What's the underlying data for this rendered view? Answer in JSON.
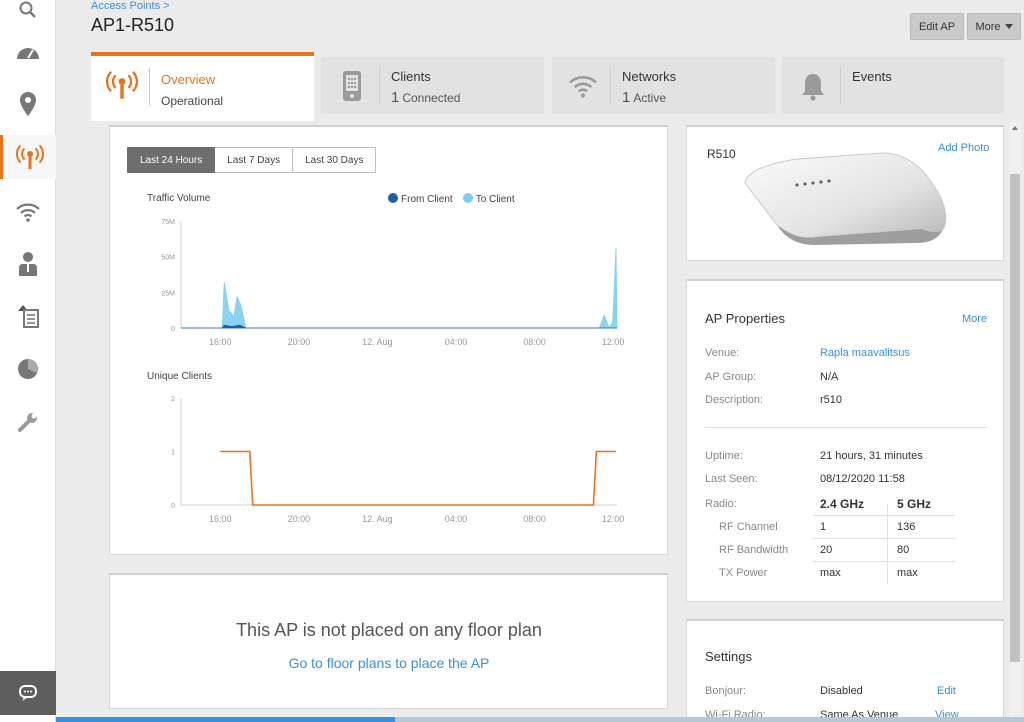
{
  "breadcrumb": "Access Points >",
  "title": "AP1-R510",
  "header_buttons": {
    "edit": "Edit AP",
    "more": "More"
  },
  "sidebar": {
    "items": [
      {
        "icon": "search-icon"
      },
      {
        "icon": "dashboard-icon"
      },
      {
        "icon": "location-pin-icon"
      },
      {
        "icon": "access-point-icon",
        "active": true
      },
      {
        "icon": "wifi-icon"
      },
      {
        "icon": "user-icon"
      },
      {
        "icon": "report-icon"
      },
      {
        "icon": "pie-chart-icon"
      },
      {
        "icon": "wrench-icon"
      }
    ],
    "chat_icon": "chat-icon"
  },
  "tabs": [
    {
      "label": "Overview",
      "sub": "Operational",
      "icon": "access-point-icon"
    },
    {
      "label": "Clients",
      "count": "1",
      "sub": "Connected",
      "icon": "device-icon"
    },
    {
      "label": "Networks",
      "count": "1",
      "sub": "Active",
      "icon": "wifi-icon"
    },
    {
      "label": "Events",
      "icon": "bell-icon"
    }
  ],
  "time_ranges": [
    "Last 24 Hours",
    "Last 7 Days",
    "Last 30 Days"
  ],
  "colors": {
    "accent": "#e8731b",
    "from_client": "#1f5ea8",
    "to_client": "#7ecfee",
    "link": "#3a8fd9"
  },
  "chart_data": [
    {
      "type": "area",
      "title": "Traffic Volume",
      "legend": [
        "From Client",
        "To Client"
      ],
      "y_ticks": [
        "75M",
        "50M",
        "25M",
        "0"
      ],
      "ylim": [
        0,
        75
      ],
      "x_ticks": [
        "16:00",
        "20:00",
        "12. Aug",
        "04:00",
        "08:00",
        "12:00"
      ],
      "series": [
        {
          "name": "To Client",
          "points": [
            [
              0.0,
              0
            ],
            [
              2.1,
              0
            ],
            [
              2.2,
              32
            ],
            [
              2.45,
              12
            ],
            [
              2.7,
              8
            ],
            [
              2.85,
              22
            ],
            [
              3.05,
              16
            ],
            [
              3.3,
              0
            ],
            [
              21.3,
              0
            ],
            [
              21.55,
              9
            ],
            [
              21.8,
              0
            ],
            [
              21.98,
              4
            ],
            [
              22.15,
              56
            ],
            [
              22.2,
              0
            ]
          ]
        },
        {
          "name": "From Client",
          "points": [
            [
              0.0,
              0
            ],
            [
              2.1,
              0
            ],
            [
              2.2,
              2
            ],
            [
              2.6,
              1
            ],
            [
              3.0,
              2
            ],
            [
              3.3,
              0
            ],
            [
              22.2,
              0
            ]
          ]
        }
      ]
    },
    {
      "type": "line",
      "title": "Unique Clients",
      "y_ticks": [
        "2",
        "1",
        "0"
      ],
      "ylim": [
        0,
        2
      ],
      "x_ticks": [
        "16:00",
        "20:00",
        "12. Aug",
        "04:00",
        "08:00",
        "12:00"
      ],
      "series": [
        {
          "name": "Clients",
          "points": [
            [
              2.0,
              1
            ],
            [
              3.5,
              1
            ],
            [
              3.65,
              0
            ],
            [
              21.0,
              0
            ],
            [
              21.15,
              1
            ],
            [
              22.15,
              1
            ]
          ]
        }
      ]
    }
  ],
  "floor_plan": {
    "message": "This AP is not placed on any floor plan",
    "link": "Go to floor plans to place the AP"
  },
  "photo_panel": {
    "model": "R510",
    "add_photo": "Add Photo"
  },
  "properties": {
    "title": "AP Properties",
    "more": "More",
    "venue_label": "Venue:",
    "venue": "Rapla maavalitsus",
    "group_label": "AP Group:",
    "group": "N/A",
    "desc_label": "Description:",
    "desc": "r510",
    "uptime_label": "Uptime:",
    "uptime": "21 hours, 31 minutes",
    "last_seen_label": "Last Seen:",
    "last_seen": "08/12/2020 11:58",
    "radio_label": "Radio:",
    "radio_24": "2.4 GHz",
    "radio_5": "5 GHz",
    "rows": [
      {
        "label": "RF Channel",
        "v24": "1",
        "v5": "136"
      },
      {
        "label": "RF Bandwidth",
        "v24": "20",
        "v5": "80"
      },
      {
        "label": "TX Power",
        "v24": "max",
        "v5": "max"
      }
    ]
  },
  "settings": {
    "title": "Settings",
    "bonjour_label": "Bonjour:",
    "bonjour": "Disabled",
    "bonjour_action": "Edit",
    "wifi_label": "Wi-Fi Radio:",
    "wifi": "Same As Venue",
    "wifi_action": "View"
  }
}
